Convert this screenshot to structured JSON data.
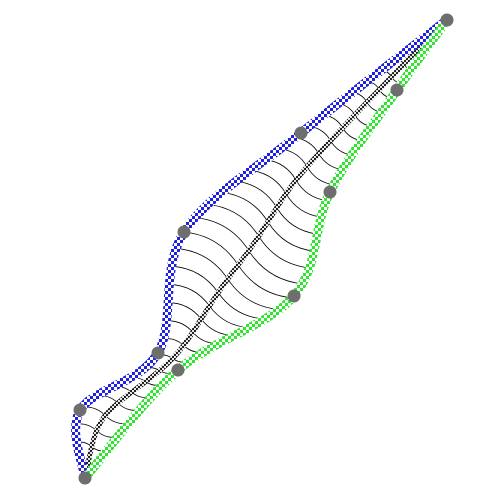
{
  "colors": {
    "upper_curve": "#1f1fe6",
    "lower_curve": "#2ee62e",
    "checker_light": "#ffffff",
    "mid_curve": "#222222",
    "mid_curve_light": "#e6e6e6",
    "ribs": "#000000",
    "control_points": "#6e6e6e"
  }
}
